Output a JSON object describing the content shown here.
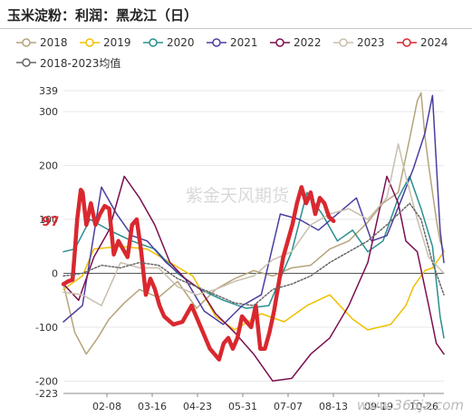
{
  "title": "玉米淀粉：利润：黑龙江（日）",
  "watermark": "紫金天风期货",
  "site_watermark": "www.365jz.com",
  "chart_data": {
    "type": "line",
    "ylim": [
      -223,
      339
    ],
    "yticks": [
      -223,
      -200,
      -100,
      0,
      100,
      200,
      300,
      339
    ],
    "latest_value_label": "97",
    "latest_value": 97,
    "x_ticks": [
      "02-08",
      "03-16",
      "04-23",
      "05-31",
      "07-07",
      "08-13",
      "09-19",
      "10-26"
    ],
    "grid": true,
    "legend_position": "top",
    "series": [
      {
        "name": "2018",
        "color": "#b5a47a",
        "width": 1.5,
        "points": [
          [
            0,
            -20
          ],
          [
            3,
            -110
          ],
          [
            6,
            -150
          ],
          [
            9,
            -120
          ],
          [
            12,
            -85
          ],
          [
            16,
            -55
          ],
          [
            20,
            -30
          ],
          [
            25,
            -45
          ],
          [
            30,
            -15
          ],
          [
            35,
            -65
          ],
          [
            40,
            -30
          ],
          [
            45,
            -10
          ],
          [
            50,
            5
          ],
          [
            55,
            -5
          ],
          [
            60,
            10
          ],
          [
            65,
            15
          ],
          [
            70,
            45
          ],
          [
            75,
            60
          ],
          [
            80,
            95
          ],
          [
            84,
            130
          ],
          [
            88,
            150
          ],
          [
            91,
            250
          ],
          [
            93,
            320
          ],
          [
            94,
            335
          ],
          [
            95,
            255
          ],
          [
            96,
            200
          ],
          [
            97,
            150
          ],
          [
            98,
            100
          ],
          [
            99,
            60
          ],
          [
            100,
            40
          ]
        ]
      },
      {
        "name": "2019",
        "color": "#f0c000",
        "width": 1.5,
        "points": [
          [
            0,
            -30
          ],
          [
            5,
            -5
          ],
          [
            8,
            45
          ],
          [
            15,
            50
          ],
          [
            22,
            45
          ],
          [
            28,
            20
          ],
          [
            34,
            -5
          ],
          [
            40,
            -80
          ],
          [
            45,
            -105
          ],
          [
            52,
            -75
          ],
          [
            58,
            -90
          ],
          [
            64,
            -60
          ],
          [
            70,
            -40
          ],
          [
            76,
            -85
          ],
          [
            80,
            -105
          ],
          [
            86,
            -95
          ],
          [
            90,
            -60
          ],
          [
            92,
            -25
          ],
          [
            95,
            5
          ],
          [
            97,
            10
          ],
          [
            100,
            40
          ]
        ]
      },
      {
        "name": "2020",
        "color": "#2a8f8f",
        "width": 1.5,
        "points": [
          [
            0,
            40
          ],
          [
            3,
            45
          ],
          [
            7,
            100
          ],
          [
            12,
            80
          ],
          [
            18,
            60
          ],
          [
            24,
            45
          ],
          [
            30,
            0
          ],
          [
            36,
            -30
          ],
          [
            42,
            -50
          ],
          [
            48,
            -65
          ],
          [
            54,
            -60
          ],
          [
            60,
            40
          ],
          [
            64,
            150
          ],
          [
            68,
            110
          ],
          [
            72,
            60
          ],
          [
            76,
            80
          ],
          [
            80,
            40
          ],
          [
            84,
            60
          ],
          [
            88,
            140
          ],
          [
            91,
            180
          ],
          [
            94,
            120
          ],
          [
            97,
            50
          ],
          [
            99,
            -80
          ],
          [
            100,
            -120
          ]
        ]
      },
      {
        "name": "2021",
        "color": "#4b3ea0",
        "width": 1.5,
        "points": [
          [
            0,
            -90
          ],
          [
            5,
            -60
          ],
          [
            10,
            160
          ],
          [
            14,
            110
          ],
          [
            18,
            70
          ],
          [
            22,
            60
          ],
          [
            27,
            20
          ],
          [
            32,
            -10
          ],
          [
            37,
            -70
          ],
          [
            42,
            -95
          ],
          [
            47,
            -60
          ],
          [
            52,
            -40
          ],
          [
            57,
            110
          ],
          [
            62,
            100
          ],
          [
            67,
            80
          ],
          [
            72,
            110
          ],
          [
            77,
            140
          ],
          [
            81,
            60
          ],
          [
            85,
            70
          ],
          [
            89,
            140
          ],
          [
            92,
            195
          ],
          [
            95,
            260
          ],
          [
            97,
            330
          ],
          [
            99,
            80
          ],
          [
            100,
            20
          ]
        ]
      },
      {
        "name": "2022",
        "color": "#7b1050",
        "width": 1.5,
        "points": [
          [
            0,
            -20
          ],
          [
            4,
            -50
          ],
          [
            8,
            30
          ],
          [
            12,
            80
          ],
          [
            16,
            180
          ],
          [
            20,
            140
          ],
          [
            24,
            90
          ],
          [
            28,
            20
          ],
          [
            32,
            -10
          ],
          [
            36,
            -30
          ],
          [
            40,
            -75
          ],
          [
            45,
            -110
          ],
          [
            50,
            -150
          ],
          [
            55,
            -200
          ],
          [
            60,
            -195
          ],
          [
            65,
            -150
          ],
          [
            70,
            -120
          ],
          [
            75,
            -60
          ],
          [
            80,
            20
          ],
          [
            85,
            180
          ],
          [
            88,
            130
          ],
          [
            90,
            60
          ],
          [
            93,
            40
          ],
          [
            96,
            -60
          ],
          [
            98,
            -130
          ],
          [
            100,
            -150
          ]
        ]
      },
      {
        "name": "2023",
        "color": "#c9bfae",
        "width": 1.5,
        "points": [
          [
            0,
            -35
          ],
          [
            5,
            -40
          ],
          [
            10,
            -60
          ],
          [
            15,
            20
          ],
          [
            20,
            10
          ],
          [
            25,
            10
          ],
          [
            30,
            -25
          ],
          [
            35,
            -40
          ],
          [
            40,
            -30
          ],
          [
            45,
            -15
          ],
          [
            50,
            -5
          ],
          [
            55,
            25
          ],
          [
            60,
            40
          ],
          [
            65,
            90
          ],
          [
            70,
            110
          ],
          [
            75,
            120
          ],
          [
            80,
            100
          ],
          [
            85,
            140
          ],
          [
            88,
            240
          ],
          [
            90,
            180
          ],
          [
            93,
            100
          ],
          [
            96,
            30
          ],
          [
            100,
            0
          ]
        ]
      },
      {
        "name": "2024",
        "color": "#d9282f",
        "width": 4.5,
        "points": [
          [
            0,
            -20
          ],
          [
            1,
            -15
          ],
          [
            2,
            -12
          ],
          [
            2.5,
            40
          ],
          [
            3,
            100
          ],
          [
            3.8,
            155
          ],
          [
            4.2,
            150
          ],
          [
            5,
            90
          ],
          [
            6,
            130
          ],
          [
            7,
            90
          ],
          [
            8,
            110
          ],
          [
            9,
            125
          ],
          [
            10,
            120
          ],
          [
            11,
            35
          ],
          [
            12,
            60
          ],
          [
            13,
            45
          ],
          [
            14,
            30
          ],
          [
            15,
            90
          ],
          [
            16,
            100
          ],
          [
            17,
            40
          ],
          [
            18,
            -40
          ],
          [
            19,
            -10
          ],
          [
            20,
            -30
          ],
          [
            21,
            -60
          ],
          [
            22,
            -80
          ],
          [
            24,
            -95
          ],
          [
            26,
            -90
          ],
          [
            28,
            -60
          ],
          [
            30,
            -100
          ],
          [
            32,
            -140
          ],
          [
            34,
            -160
          ],
          [
            35,
            -130
          ],
          [
            36,
            -120
          ],
          [
            37,
            -140
          ],
          [
            38,
            -120
          ],
          [
            39,
            -80
          ],
          [
            40,
            -90
          ],
          [
            41,
            -100
          ],
          [
            42,
            -60
          ],
          [
            43,
            -140
          ],
          [
            44,
            -140
          ],
          [
            45,
            -110
          ],
          [
            46,
            -70
          ],
          [
            47,
            -20
          ],
          [
            48,
            30
          ],
          [
            49,
            60
          ],
          [
            50,
            90
          ],
          [
            51,
            130
          ],
          [
            52,
            160
          ],
          [
            53,
            130
          ],
          [
            54,
            150
          ],
          [
            55,
            110
          ],
          [
            56,
            140
          ],
          [
            57,
            130
          ],
          [
            58,
            105
          ],
          [
            59,
            97
          ]
        ],
        "xmax_frac": 0.71
      },
      {
        "name": "2018-2023均值",
        "color": "#666666",
        "width": 1.5,
        "dash": "2,2",
        "points": [
          [
            0,
            -5
          ],
          [
            5,
            0
          ],
          [
            10,
            15
          ],
          [
            15,
            10
          ],
          [
            20,
            20
          ],
          [
            25,
            15
          ],
          [
            30,
            -10
          ],
          [
            35,
            -25
          ],
          [
            40,
            -40
          ],
          [
            45,
            -55
          ],
          [
            50,
            -60
          ],
          [
            55,
            -30
          ],
          [
            60,
            -20
          ],
          [
            65,
            -5
          ],
          [
            70,
            20
          ],
          [
            75,
            40
          ],
          [
            80,
            60
          ],
          [
            85,
            90
          ],
          [
            88,
            110
          ],
          [
            91,
            130
          ],
          [
            94,
            100
          ],
          [
            97,
            20
          ],
          [
            100,
            -40
          ]
        ]
      }
    ]
  }
}
